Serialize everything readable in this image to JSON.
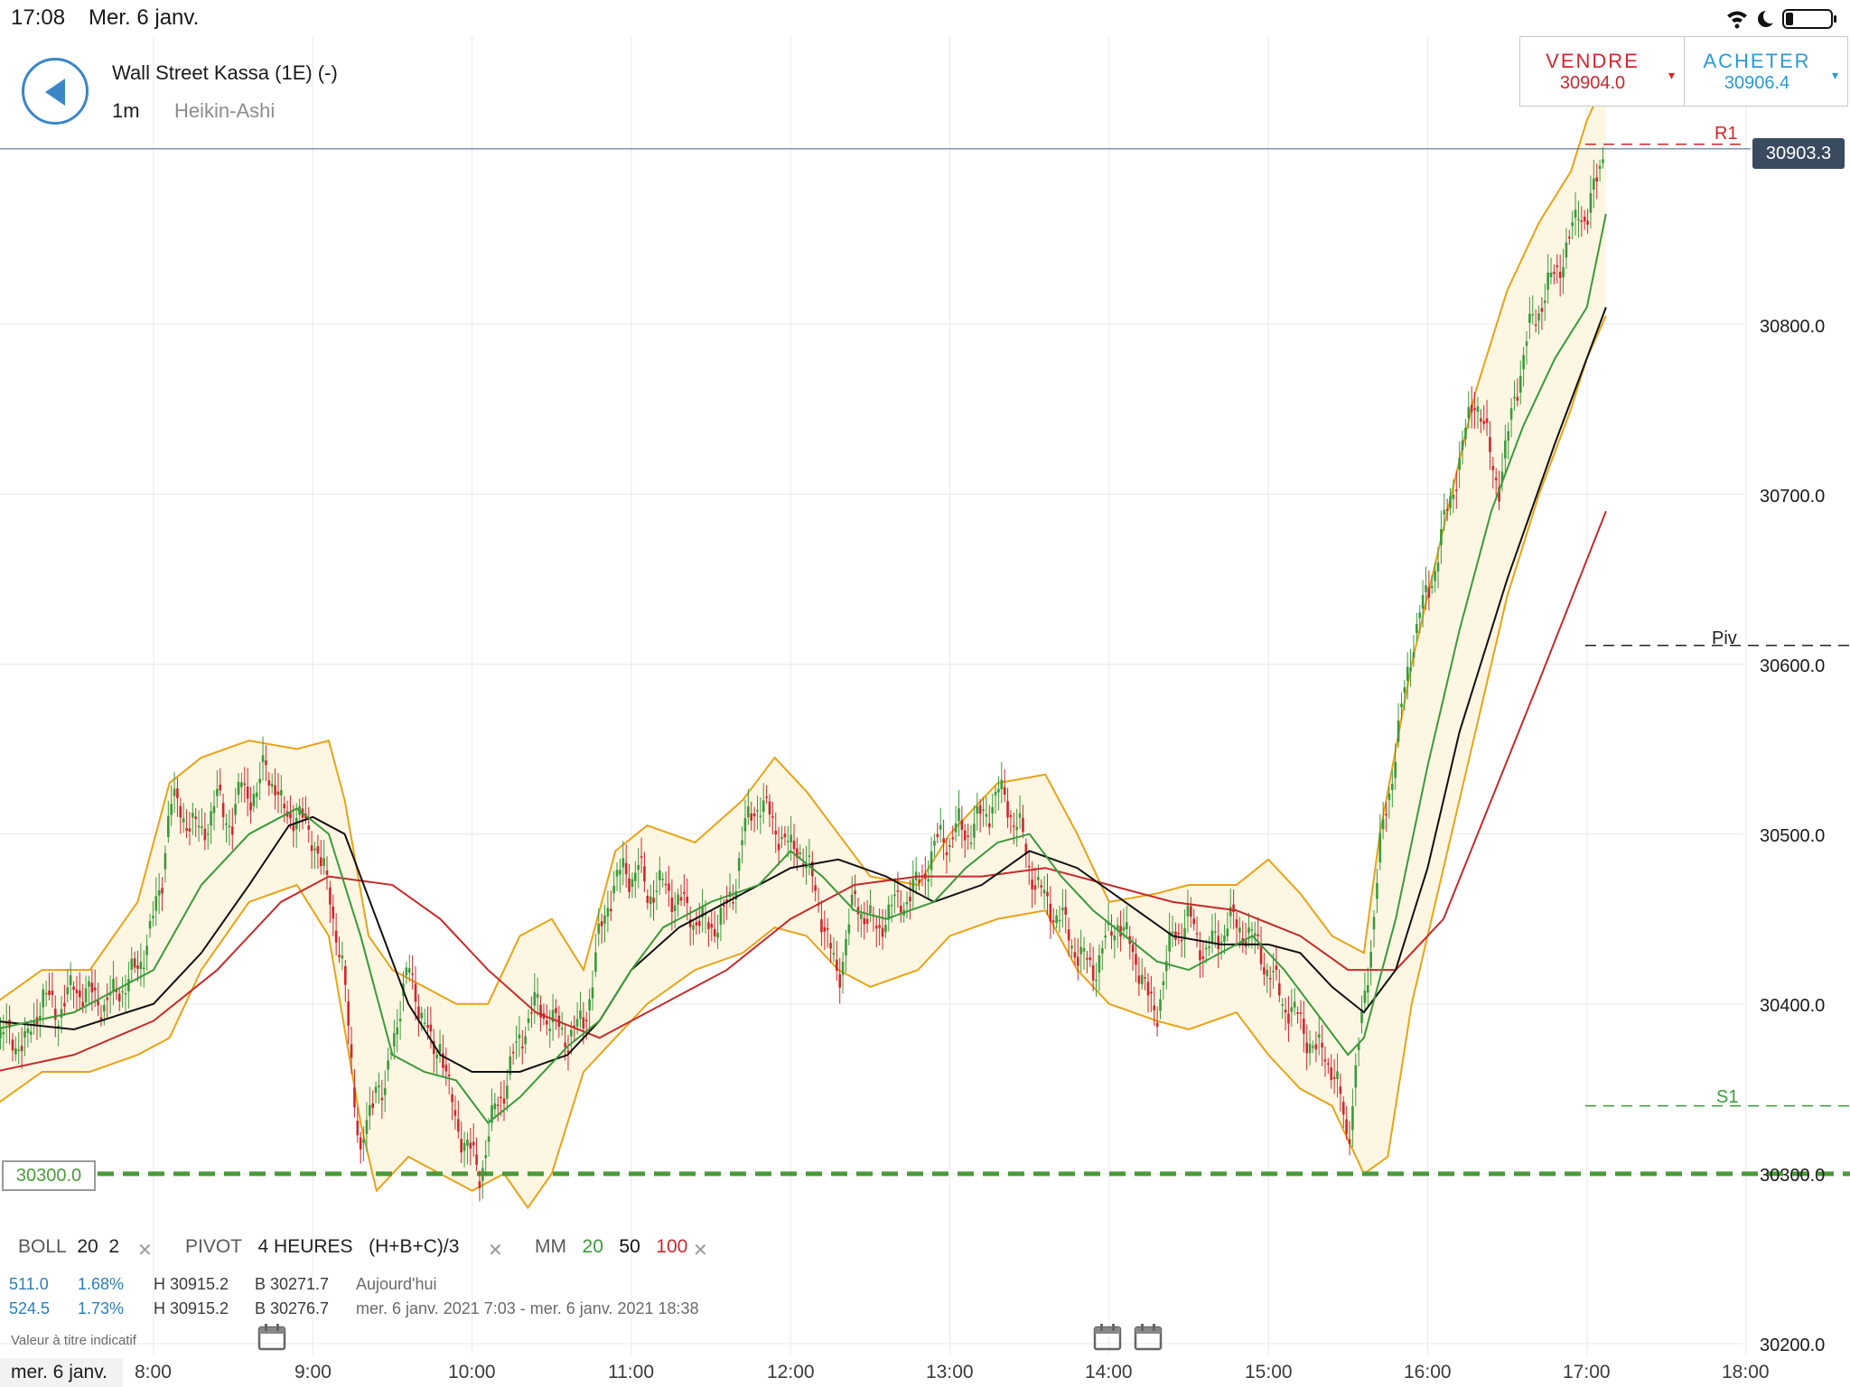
{
  "status": {
    "time": "17:08",
    "date": "Mer. 6 janv."
  },
  "header": {
    "title": "Wall Street Kassa (1E) (-)",
    "timeframe": "1m",
    "chart_type": "Heikin-Ashi",
    "back_icon": "back-arrow-icon"
  },
  "trade": {
    "sell": {
      "label": "VENDRE",
      "price": "30904.0",
      "caret": "▾",
      "color": "#d0262d"
    },
    "buy": {
      "label": "ACHETER",
      "price": "30906.4",
      "caret": "▾",
      "color": "#2a9ad3"
    }
  },
  "current_price": "30903.3",
  "level_tag": "30300.0",
  "pivots": {
    "r1": "R1",
    "piv": "Piv",
    "s1": "S1"
  },
  "indicators": {
    "boll": {
      "name": "BOLL",
      "p1": "20",
      "p2": "2"
    },
    "pivot": {
      "name": "PIVOT",
      "period": "4 HEURES",
      "formula": "(H+B+C)/3"
    },
    "mm": {
      "name": "MM",
      "p1": "20",
      "p2": "50",
      "p3": "100"
    },
    "remove_icon": "close-icon"
  },
  "stats": [
    {
      "points": "511.0",
      "pct": "1.68%",
      "high": "H 30915.2",
      "low": "B 30271.7",
      "range": "Aujourd'hui"
    },
    {
      "points": "524.5",
      "pct": "1.73%",
      "high": "H 30915.2",
      "low": "B 30276.7",
      "range": "mer. 6 janv. 2021 7:03 - mer. 6 janv. 2021 18:38"
    }
  ],
  "disclaimer": "Valeur à titre indicatif",
  "date_label": "mer. 6 janv.",
  "chart_data": {
    "type": "candlestick",
    "style": "Heikin-Ashi",
    "x_ticks": [
      "8:00",
      "9:00",
      "10:00",
      "11:00",
      "12:00",
      "13:00",
      "14:00",
      "15:00",
      "16:00",
      "17:00",
      "18:00"
    ],
    "y_ticks": [
      "30800.0",
      "30700.0",
      "30600.0",
      "30500.0",
      "30400.0",
      "30300.0",
      "30200.0"
    ],
    "y_range": [
      30200,
      30970
    ],
    "levels": {
      "r1": 30906,
      "piv": 30611,
      "s1": 30340,
      "alert": 30300,
      "last": 30903.3
    },
    "colors": {
      "up": "#3a9a3a",
      "down": "#d0262d",
      "boll": "#e8a317",
      "mm20": "#3a9a3a",
      "mm50": "#111111",
      "mm100": "#c42b2b",
      "grid": "#e9e9e9"
    },
    "close_path": [
      [
        7.0,
        30385
      ],
      [
        7.2,
        30375
      ],
      [
        7.3,
        30405
      ],
      [
        7.4,
        30395
      ],
      [
        7.5,
        30410
      ],
      [
        7.7,
        30400
      ],
      [
        7.9,
        30420
      ],
      [
        8.0,
        30450
      ],
      [
        8.05,
        30470
      ],
      [
        8.1,
        30520
      ],
      [
        8.2,
        30510
      ],
      [
        8.3,
        30500
      ],
      [
        8.4,
        30520
      ],
      [
        8.5,
        30505
      ],
      [
        8.55,
        30530
      ],
      [
        8.65,
        30520
      ],
      [
        8.7,
        30545
      ],
      [
        8.75,
        30530
      ],
      [
        8.8,
        30515
      ],
      [
        8.9,
        30510
      ],
      [
        9.0,
        30500
      ],
      [
        9.05,
        30480
      ],
      [
        9.1,
        30470
      ],
      [
        9.15,
        30440
      ],
      [
        9.2,
        30410
      ],
      [
        9.25,
        30360
      ],
      [
        9.3,
        30310
      ],
      [
        9.35,
        30330
      ],
      [
        9.4,
        30360
      ],
      [
        9.45,
        30340
      ],
      [
        9.5,
        30380
      ],
      [
        9.55,
        30400
      ],
      [
        9.6,
        30420
      ],
      [
        9.7,
        30390
      ],
      [
        9.75,
        30370
      ],
      [
        9.8,
        30380
      ],
      [
        9.85,
        30350
      ],
      [
        9.9,
        30330
      ],
      [
        9.95,
        30320
      ],
      [
        10.0,
        30310
      ],
      [
        10.05,
        30300
      ],
      [
        10.1,
        30320
      ],
      [
        10.15,
        30340
      ],
      [
        10.2,
        30350
      ],
      [
        10.3,
        30380
      ],
      [
        10.4,
        30400
      ],
      [
        10.5,
        30390
      ],
      [
        10.6,
        30380
      ],
      [
        10.7,
        30390
      ],
      [
        10.75,
        30410
      ],
      [
        10.8,
        30440
      ],
      [
        10.85,
        30460
      ],
      [
        10.9,
        30470
      ],
      [
        10.95,
        30480
      ],
      [
        11.0,
        30475
      ],
      [
        11.05,
        30480
      ],
      [
        11.1,
        30465
      ],
      [
        11.2,
        30470
      ],
      [
        11.3,
        30460
      ],
      [
        11.4,
        30450
      ],
      [
        11.5,
        30445
      ],
      [
        11.6,
        30455
      ],
      [
        11.65,
        30470
      ],
      [
        11.7,
        30500
      ],
      [
        11.75,
        30510
      ],
      [
        11.8,
        30520
      ],
      [
        11.9,
        30505
      ],
      [
        12.0,
        30490
      ],
      [
        12.05,
        30495
      ],
      [
        12.1,
        30480
      ],
      [
        12.15,
        30470
      ],
      [
        12.2,
        30450
      ],
      [
        12.25,
        30430
      ],
      [
        12.3,
        30415
      ],
      [
        12.35,
        30440
      ],
      [
        12.4,
        30460
      ],
      [
        12.5,
        30450
      ],
      [
        12.55,
        30440
      ],
      [
        12.6,
        30455
      ],
      [
        12.7,
        30460
      ],
      [
        12.8,
        30470
      ],
      [
        12.85,
        30480
      ],
      [
        12.9,
        30490
      ],
      [
        12.95,
        30500
      ],
      [
        13.0,
        30495
      ],
      [
        13.05,
        30505
      ],
      [
        13.1,
        30500
      ],
      [
        13.2,
        30510
      ],
      [
        13.25,
        30515
      ],
      [
        13.3,
        30525
      ],
      [
        13.35,
        30520
      ],
      [
        13.4,
        30510
      ],
      [
        13.45,
        30500
      ],
      [
        13.5,
        30480
      ],
      [
        13.6,
        30460
      ],
      [
        13.7,
        30450
      ],
      [
        13.75,
        30440
      ],
      [
        13.8,
        30430
      ],
      [
        13.9,
        30420
      ],
      [
        13.95,
        30430
      ],
      [
        14.0,
        30440
      ],
      [
        14.05,
        30450
      ],
      [
        14.1,
        30440
      ],
      [
        14.2,
        30420
      ],
      [
        14.25,
        30400
      ],
      [
        14.3,
        30395
      ],
      [
        14.35,
        30420
      ],
      [
        14.4,
        30440
      ],
      [
        14.5,
        30450
      ],
      [
        14.55,
        30440
      ],
      [
        14.6,
        30430
      ],
      [
        14.7,
        30440
      ],
      [
        14.75,
        30450
      ],
      [
        14.8,
        30445
      ],
      [
        14.9,
        30440
      ],
      [
        14.95,
        30430
      ],
      [
        15.0,
        30420
      ],
      [
        15.05,
        30410
      ],
      [
        15.1,
        30400
      ],
      [
        15.2,
        30390
      ],
      [
        15.25,
        30380
      ],
      [
        15.3,
        30370
      ],
      [
        15.35,
        30375
      ],
      [
        15.4,
        30360
      ],
      [
        15.45,
        30345
      ],
      [
        15.5,
        30320
      ],
      [
        15.55,
        30360
      ],
      [
        15.6,
        30400
      ],
      [
        15.65,
        30440
      ],
      [
        15.7,
        30490
      ],
      [
        15.75,
        30520
      ],
      [
        15.8,
        30550
      ],
      [
        15.85,
        30580
      ],
      [
        15.9,
        30610
      ],
      [
        15.95,
        30630
      ],
      [
        16.0,
        30640
      ],
      [
        16.05,
        30660
      ],
      [
        16.1,
        30680
      ],
      [
        16.15,
        30700
      ],
      [
        16.2,
        30720
      ],
      [
        16.25,
        30740
      ],
      [
        16.3,
        30760
      ],
      [
        16.35,
        30740
      ],
      [
        16.4,
        30720
      ],
      [
        16.45,
        30705
      ],
      [
        16.5,
        30730
      ],
      [
        16.55,
        30760
      ],
      [
        16.6,
        30780
      ],
      [
        16.65,
        30800
      ],
      [
        16.7,
        30810
      ],
      [
        16.75,
        30820
      ],
      [
        16.8,
        30830
      ],
      [
        16.85,
        30840
      ],
      [
        16.9,
        30850
      ],
      [
        16.95,
        30870
      ],
      [
        17.0,
        30860
      ],
      [
        17.05,
        30880
      ],
      [
        17.1,
        30903
      ]
    ],
    "mm20": [
      [
        7.0,
        30385
      ],
      [
        7.5,
        30395
      ],
      [
        8.0,
        30420
      ],
      [
        8.3,
        30470
      ],
      [
        8.6,
        30500
      ],
      [
        8.9,
        30515
      ],
      [
        9.1,
        30500
      ],
      [
        9.3,
        30440
      ],
      [
        9.5,
        30370
      ],
      [
        9.7,
        30360
      ],
      [
        9.9,
        30355
      ],
      [
        10.1,
        30330
      ],
      [
        10.3,
        30345
      ],
      [
        10.6,
        30375
      ],
      [
        10.8,
        30390
      ],
      [
        11.0,
        30420
      ],
      [
        11.2,
        30445
      ],
      [
        11.5,
        30460
      ],
      [
        11.8,
        30470
      ],
      [
        12.0,
        30490
      ],
      [
        12.2,
        30475
      ],
      [
        12.4,
        30455
      ],
      [
        12.6,
        30450
      ],
      [
        12.9,
        30460
      ],
      [
        13.1,
        30480
      ],
      [
        13.3,
        30495
      ],
      [
        13.5,
        30500
      ],
      [
        13.7,
        30475
      ],
      [
        13.9,
        30455
      ],
      [
        14.1,
        30440
      ],
      [
        14.3,
        30425
      ],
      [
        14.5,
        30420
      ],
      [
        14.7,
        30430
      ],
      [
        14.9,
        30440
      ],
      [
        15.1,
        30420
      ],
      [
        15.3,
        30395
      ],
      [
        15.5,
        30370
      ],
      [
        15.6,
        30380
      ],
      [
        15.8,
        30450
      ],
      [
        16.0,
        30540
      ],
      [
        16.2,
        30620
      ],
      [
        16.4,
        30690
      ],
      [
        16.6,
        30740
      ],
      [
        16.8,
        30780
      ],
      [
        17.0,
        30810
      ],
      [
        17.12,
        30865
      ]
    ],
    "mm50": [
      [
        7.0,
        30390
      ],
      [
        7.5,
        30385
      ],
      [
        8.0,
        30400
      ],
      [
        8.3,
        30430
      ],
      [
        8.6,
        30470
      ],
      [
        8.85,
        30505
      ],
      [
        9.0,
        30510
      ],
      [
        9.2,
        30500
      ],
      [
        9.4,
        30450
      ],
      [
        9.6,
        30400
      ],
      [
        9.8,
        30370
      ],
      [
        10.0,
        30360
      ],
      [
        10.3,
        30360
      ],
      [
        10.6,
        30370
      ],
      [
        10.8,
        30390
      ],
      [
        11.0,
        30420
      ],
      [
        11.3,
        30445
      ],
      [
        11.6,
        30460
      ],
      [
        12.0,
        30480
      ],
      [
        12.3,
        30485
      ],
      [
        12.6,
        30475
      ],
      [
        12.9,
        30460
      ],
      [
        13.2,
        30470
      ],
      [
        13.5,
        30490
      ],
      [
        13.8,
        30480
      ],
      [
        14.1,
        30460
      ],
      [
        14.4,
        30440
      ],
      [
        14.7,
        30435
      ],
      [
        15.0,
        30435
      ],
      [
        15.2,
        30430
      ],
      [
        15.4,
        30410
      ],
      [
        15.6,
        30395
      ],
      [
        15.8,
        30420
      ],
      [
        16.0,
        30480
      ],
      [
        16.2,
        30560
      ],
      [
        16.5,
        30650
      ],
      [
        16.8,
        30730
      ],
      [
        17.12,
        30810
      ]
    ],
    "mm100": [
      [
        7.0,
        30360
      ],
      [
        7.5,
        30370
      ],
      [
        8.0,
        30390
      ],
      [
        8.4,
        30420
      ],
      [
        8.8,
        30460
      ],
      [
        9.1,
        30475
      ],
      [
        9.5,
        30470
      ],
      [
        9.8,
        30450
      ],
      [
        10.1,
        30420
      ],
      [
        10.4,
        30395
      ],
      [
        10.8,
        30380
      ],
      [
        11.2,
        30400
      ],
      [
        11.6,
        30420
      ],
      [
        12.0,
        30450
      ],
      [
        12.4,
        30470
      ],
      [
        12.8,
        30475
      ],
      [
        13.2,
        30475
      ],
      [
        13.6,
        30480
      ],
      [
        14.0,
        30470
      ],
      [
        14.4,
        30460
      ],
      [
        14.8,
        30455
      ],
      [
        15.2,
        30440
      ],
      [
        15.5,
        30420
      ],
      [
        15.8,
        30420
      ],
      [
        16.1,
        30450
      ],
      [
        16.4,
        30520
      ],
      [
        16.7,
        30590
      ],
      [
        17.12,
        30690
      ]
    ],
    "boll_upper": [
      [
        7.0,
        30400
      ],
      [
        7.3,
        30420
      ],
      [
        7.6,
        30420
      ],
      [
        7.9,
        30460
      ],
      [
        8.1,
        30530
      ],
      [
        8.3,
        30545
      ],
      [
        8.6,
        30555
      ],
      [
        8.9,
        30550
      ],
      [
        9.1,
        30555
      ],
      [
        9.2,
        30520
      ],
      [
        9.35,
        30440
      ],
      [
        9.5,
        30420
      ],
      [
        9.7,
        30410
      ],
      [
        9.9,
        30400
      ],
      [
        10.1,
        30400
      ],
      [
        10.3,
        30440
      ],
      [
        10.5,
        30450
      ],
      [
        10.7,
        30420
      ],
      [
        10.9,
        30490
      ],
      [
        11.1,
        30505
      ],
      [
        11.4,
        30495
      ],
      [
        11.7,
        30520
      ],
      [
        11.9,
        30545
      ],
      [
        12.1,
        30525
      ],
      [
        12.3,
        30500
      ],
      [
        12.5,
        30475
      ],
      [
        12.8,
        30470
      ],
      [
        13.0,
        30500
      ],
      [
        13.3,
        30530
      ],
      [
        13.6,
        30535
      ],
      [
        13.8,
        30500
      ],
      [
        14.0,
        30460
      ],
      [
        14.3,
        30465
      ],
      [
        14.5,
        30470
      ],
      [
        14.8,
        30470
      ],
      [
        15.0,
        30485
      ],
      [
        15.2,
        30465
      ],
      [
        15.4,
        30440
      ],
      [
        15.6,
        30430
      ],
      [
        15.7,
        30500
      ],
      [
        15.9,
        30600
      ],
      [
        16.1,
        30680
      ],
      [
        16.3,
        30760
      ],
      [
        16.5,
        30820
      ],
      [
        16.7,
        30860
      ],
      [
        16.9,
        30890
      ],
      [
        17.0,
        30920
      ],
      [
        17.12,
        30945
      ]
    ],
    "boll_lower": [
      [
        7.0,
        30340
      ],
      [
        7.3,
        30360
      ],
      [
        7.6,
        30360
      ],
      [
        7.9,
        30370
      ],
      [
        8.1,
        30380
      ],
      [
        8.3,
        30420
      ],
      [
        8.6,
        30460
      ],
      [
        8.9,
        30470
      ],
      [
        9.1,
        30440
      ],
      [
        9.3,
        30330
      ],
      [
        9.4,
        30290
      ],
      [
        9.6,
        30310
      ],
      [
        9.8,
        30300
      ],
      [
        10.0,
        30290
      ],
      [
        10.2,
        30300
      ],
      [
        10.35,
        30280
      ],
      [
        10.5,
        30300
      ],
      [
        10.7,
        30360
      ],
      [
        10.9,
        30380
      ],
      [
        11.1,
        30400
      ],
      [
        11.4,
        30420
      ],
      [
        11.7,
        30430
      ],
      [
        11.9,
        30445
      ],
      [
        12.1,
        30440
      ],
      [
        12.3,
        30420
      ],
      [
        12.5,
        30410
      ],
      [
        12.8,
        30420
      ],
      [
        13.0,
        30440
      ],
      [
        13.3,
        30450
      ],
      [
        13.6,
        30455
      ],
      [
        13.8,
        30420
      ],
      [
        14.0,
        30400
      ],
      [
        14.3,
        30390
      ],
      [
        14.5,
        30385
      ],
      [
        14.8,
        30395
      ],
      [
        15.0,
        30370
      ],
      [
        15.2,
        30350
      ],
      [
        15.4,
        30340
      ],
      [
        15.6,
        30300
      ],
      [
        15.75,
        30310
      ],
      [
        15.9,
        30400
      ],
      [
        16.1,
        30480
      ],
      [
        16.3,
        30560
      ],
      [
        16.5,
        30640
      ],
      [
        16.7,
        30700
      ],
      [
        16.9,
        30750
      ],
      [
        17.0,
        30780
      ],
      [
        17.12,
        30805
      ]
    ]
  }
}
